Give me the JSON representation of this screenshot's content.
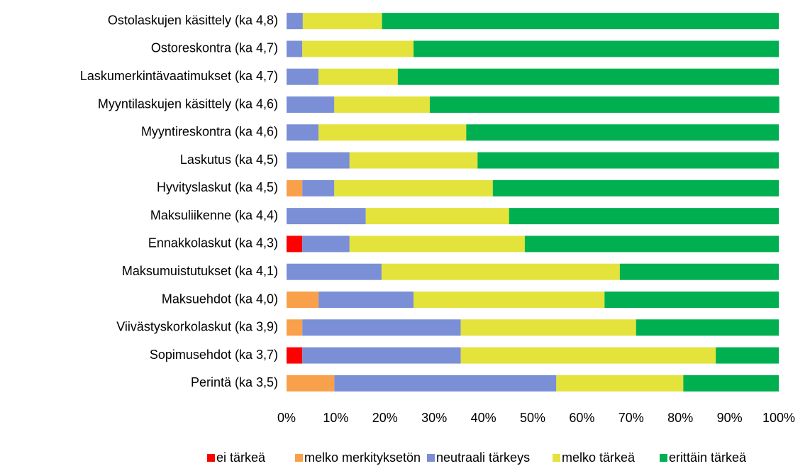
{
  "chart_data": {
    "type": "stacked-bar-horizontal",
    "categories": [
      "Ostolaskujen käsittely (ka 4,8)",
      "Ostoreskontra (ka 4,7)",
      "Laskumerkintävaatimukset (ka 4,7)",
      "Myyntilaskujen käsittely (ka 4,6)",
      "Myyntireskontra (ka 4,6)",
      "Laskutus (ka 4,5)",
      "Hyvityslaskut (ka 4,5)",
      "Maksuliikenne (ka 4,4)",
      "Ennakkolaskut (ka 4,3)",
      "Maksumuistutukset (ka 4,1)",
      "Maksuehdot (ka 4,0)",
      "Viivästyskorkolaskut (ka 3,9)",
      "Sopimusehdot (ka 3,7)",
      "Perintä (ka 3,5)"
    ],
    "series": [
      {
        "name": "ei tärkeä",
        "color": "#ff0000",
        "values": [
          0,
          0,
          0,
          0,
          0,
          0,
          0,
          0,
          3.2,
          0,
          0,
          0,
          3.2,
          0
        ]
      },
      {
        "name": "melko merkityksetön",
        "color": "#f9a04a",
        "values": [
          0,
          0,
          0,
          0,
          0,
          0,
          3.2,
          0,
          0,
          0,
          6.5,
          3.2,
          0,
          9.7
        ]
      },
      {
        "name": "neutraali tärkeys",
        "color": "#7b8fd6",
        "values": [
          3.3,
          3.2,
          6.5,
          9.7,
          6.5,
          12.8,
          6.5,
          16.1,
          9.6,
          19.3,
          19.3,
          32.2,
          32.2,
          45.1
        ]
      },
      {
        "name": "melko tärkeä",
        "color": "#e3e33c",
        "values": [
          16.1,
          22.6,
          16.1,
          19.4,
          30.0,
          26.0,
          32.2,
          29.1,
          35.6,
          48.4,
          38.8,
          35.6,
          51.8,
          25.8
        ]
      },
      {
        "name": "erittäin tärkeä",
        "color": "#00b050",
        "values": [
          80.6,
          74.2,
          77.4,
          71.0,
          63.5,
          61.2,
          58.1,
          54.8,
          51.6,
          32.3,
          35.4,
          29.0,
          12.8,
          19.4
        ]
      }
    ],
    "xlim": [
      0,
      100
    ],
    "xticks": [
      {
        "value": 0,
        "label": "0%"
      },
      {
        "value": 10,
        "label": "10%"
      },
      {
        "value": 20,
        "label": "20%"
      },
      {
        "value": 30,
        "label": "30%"
      },
      {
        "value": 40,
        "label": "40%"
      },
      {
        "value": 50,
        "label": "50%"
      },
      {
        "value": 60,
        "label": "60%"
      },
      {
        "value": 70,
        "label": "70%"
      },
      {
        "value": 80,
        "label": "80%"
      },
      {
        "value": 90,
        "label": "90%"
      },
      {
        "value": 100,
        "label": "100%"
      }
    ],
    "legend": "bottom"
  }
}
